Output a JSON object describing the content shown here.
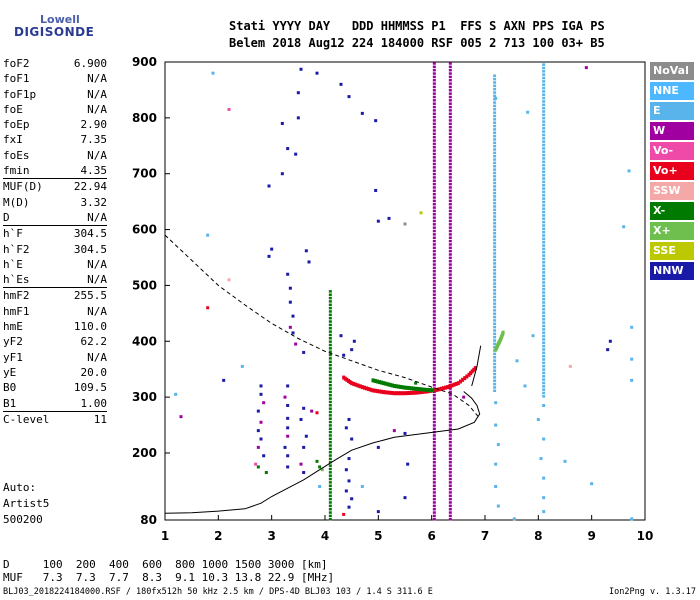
{
  "logo": {
    "line1": "Lowell",
    "line2": "DIGISONDE"
  },
  "header": {
    "line1": "Stati YYYY DAY   DDD HHMMSS P1  FFS S AXN PPS IGA PS",
    "line2": "Belem 2018 Aug12 224 184000 RSF 005 2 713 100 03+ B5"
  },
  "params_group1": [
    {
      "label": "foF2",
      "value": "6.900"
    },
    {
      "label": "foF1",
      "value": "N/A"
    },
    {
      "label": "foF1p",
      "value": "N/A"
    },
    {
      "label": "foE",
      "value": "N/A"
    },
    {
      "label": "foEp",
      "value": "2.90"
    },
    {
      "label": "fxI",
      "value": "7.35"
    },
    {
      "label": "foEs",
      "value": "N/A"
    },
    {
      "label": "fmin",
      "value": "4.35"
    }
  ],
  "params_group2": [
    {
      "label": "MUF(D)",
      "value": "22.94"
    },
    {
      "label": "M(D)",
      "value": "3.32"
    },
    {
      "label": "D",
      "value": "N/A"
    }
  ],
  "params_group3": [
    {
      "label": "h`F",
      "value": "304.5"
    },
    {
      "label": "h`F2",
      "value": "304.5"
    },
    {
      "label": "h`E",
      "value": "N/A"
    },
    {
      "label": "h`Es",
      "value": "N/A"
    }
  ],
  "params_group4": [
    {
      "label": "hmF2",
      "value": "255.5"
    },
    {
      "label": "hmF1",
      "value": "N/A"
    },
    {
      "label": "hmE",
      "value": "110.0"
    },
    {
      "label": "yF2",
      "value": "62.2"
    },
    {
      "label": "yF1",
      "value": "N/A"
    },
    {
      "label": "yE",
      "value": "20.0"
    },
    {
      "label": "B0",
      "value": "109.5"
    },
    {
      "label": "B1",
      "value": "1.00"
    }
  ],
  "params_group5": [
    {
      "label": "C-level",
      "value": "11"
    }
  ],
  "auto": {
    "line1": "Auto:",
    "line2": "Artist5",
    "line3": "500200"
  },
  "muf_table": {
    "d_row": "D     100  200  400  600  800 1000 1500 3000 [km]",
    "muf_row": "MUF   7.3  7.3  7.7  8.3  9.1 10.3 13.8 22.9 [MHz]"
  },
  "footer": {
    "left": "BLJ03_2018224184000.RSF / 180fx512h 50 kHz 2.5 km / DPS-4D BLJ03 103 / 1.4 S 311.6 E",
    "right": "Ion2Png v. 1.3.17"
  },
  "legend": [
    {
      "label": "NoVal",
      "color": "#8c8c8c"
    },
    {
      "label": "NNE",
      "color": "#4db8ff"
    },
    {
      "label": "E",
      "color": "#59b4ec"
    },
    {
      "label": "W",
      "color": "#a0009f"
    },
    {
      "label": "Vo-",
      "color": "#f04aa8"
    },
    {
      "label": "Vo+",
      "color": "#e8001c"
    },
    {
      "label": "SSW",
      "color": "#f4a9a8"
    },
    {
      "label": "X-",
      "color": "#007a00"
    },
    {
      "label": "X+",
      "color": "#6fbf4f"
    },
    {
      "label": "SSE",
      "color": "#bcc800"
    },
    {
      "label": "NNW",
      "color": "#1a1aa8"
    }
  ],
  "chart_data": {
    "type": "scatter",
    "xlim": [
      1,
      10
    ],
    "ylim": [
      80,
      900
    ],
    "xticks": [
      1,
      2,
      3,
      4,
      5,
      6,
      7,
      8,
      9,
      10
    ],
    "yticks": [
      80,
      200,
      300,
      400,
      500,
      600,
      700,
      800,
      900
    ],
    "x_unit": "MHz",
    "y_unit": "km",
    "grid": false,
    "legend_position": "right",
    "traces": [
      {
        "name": "Vo+",
        "color": "#e8001c",
        "x": [
          4.35,
          4.5,
          4.7,
          4.9,
          5.1,
          5.3,
          5.5,
          5.7,
          5.9,
          6.1,
          6.3,
          6.5,
          6.7,
          6.85
        ],
        "y": [
          335,
          325,
          318,
          312,
          309,
          307,
          307,
          308,
          310,
          313,
          318,
          325,
          340,
          355
        ]
      },
      {
        "name": "X-",
        "color": "#007a00",
        "x": [
          4.9,
          5.1,
          5.3,
          5.5,
          5.7,
          5.9,
          6.05
        ],
        "y": [
          330,
          325,
          320,
          317,
          315,
          313,
          312
        ]
      },
      {
        "name": "X+",
        "color": "#6fbf4f",
        "x": [
          7.2,
          7.25,
          7.3,
          7.35
        ],
        "y": [
          385,
          395,
          405,
          418
        ]
      }
    ],
    "profile_solid": {
      "color": "#000000",
      "x": [
        1.0,
        1.5,
        2.0,
        2.5,
        2.8,
        3.0,
        3.3,
        3.6,
        3.9,
        4.2,
        4.5,
        4.9,
        5.3,
        5.7,
        6.1,
        6.5,
        6.8,
        6.9,
        6.85,
        6.75,
        6.6
      ],
      "y": [
        92,
        93,
        96,
        100,
        110,
        122,
        137,
        152,
        170,
        188,
        205,
        218,
        228,
        233,
        238,
        243,
        255,
        270,
        285,
        298,
        310
      ]
    },
    "profile_tail": {
      "color": "#000000",
      "x": [
        6.75,
        6.85,
        6.92
      ],
      "y": [
        320,
        355,
        392
      ]
    },
    "profile_dashed": {
      "color": "#000000",
      "x": [
        1.0,
        1.5,
        2.0,
        2.5,
        3.0,
        3.5,
        4.0,
        4.5,
        5.0,
        5.5,
        6.0,
        6.4,
        6.7,
        6.9
      ],
      "y": [
        590,
        545,
        500,
        465,
        432,
        405,
        382,
        365,
        348,
        335,
        318,
        305,
        285,
        262
      ]
    },
    "vertical_traces": [
      {
        "x": 6.05,
        "y_from": 80,
        "y_to": 900,
        "color": "#a0009f"
      },
      {
        "x": 6.35,
        "y_from": 80,
        "y_to": 900,
        "color": "#a0009f"
      },
      {
        "x": 4.1,
        "y_from": 80,
        "y_to": 490,
        "color": "#007a00"
      },
      {
        "x": 7.18,
        "y_from": 310,
        "y_to": 880,
        "color": "#59b4ec"
      },
      {
        "x": 8.1,
        "y_from": 300,
        "y_to": 900,
        "color": "#59b4ec"
      }
    ],
    "scatter_points": [
      {
        "x": 3.55,
        "y": 887,
        "c": "#1a1aa8"
      },
      {
        "x": 3.85,
        "y": 880,
        "c": "#1a1aa8"
      },
      {
        "x": 1.9,
        "y": 880,
        "c": "#59b4ec"
      },
      {
        "x": 8.9,
        "y": 890,
        "c": "#a0009f"
      },
      {
        "x": 3.5,
        "y": 845,
        "c": "#1a1aa8"
      },
      {
        "x": 4.3,
        "y": 860,
        "c": "#1a1aa8"
      },
      {
        "x": 4.45,
        "y": 838,
        "c": "#1a1aa8"
      },
      {
        "x": 2.2,
        "y": 815,
        "c": "#f04aa8"
      },
      {
        "x": 3.5,
        "y": 800,
        "c": "#1a1aa8"
      },
      {
        "x": 3.2,
        "y": 790,
        "c": "#1a1aa8"
      },
      {
        "x": 4.7,
        "y": 808,
        "c": "#1a1aa8"
      },
      {
        "x": 4.95,
        "y": 795,
        "c": "#1a1aa8"
      },
      {
        "x": 7.2,
        "y": 835,
        "c": "#59b4ec"
      },
      {
        "x": 7.8,
        "y": 810,
        "c": "#59b4ec"
      },
      {
        "x": 3.3,
        "y": 745,
        "c": "#1a1aa8"
      },
      {
        "x": 3.45,
        "y": 735,
        "c": "#1a1aa8"
      },
      {
        "x": 3.2,
        "y": 700,
        "c": "#1a1aa8"
      },
      {
        "x": 2.95,
        "y": 678,
        "c": "#1a1aa8"
      },
      {
        "x": 4.95,
        "y": 670,
        "c": "#1a1aa8"
      },
      {
        "x": 5.2,
        "y": 620,
        "c": "#1a1aa8"
      },
      {
        "x": 5.0,
        "y": 615,
        "c": "#1a1aa8"
      },
      {
        "x": 5.8,
        "y": 630,
        "c": "#bcc800"
      },
      {
        "x": 1.8,
        "y": 590,
        "c": "#59b4ec"
      },
      {
        "x": 5.5,
        "y": 610,
        "c": "#8c8c8c"
      },
      {
        "x": 2.95,
        "y": 552,
        "c": "#1a1aa8"
      },
      {
        "x": 3.0,
        "y": 565,
        "c": "#1a1aa8"
      },
      {
        "x": 3.65,
        "y": 562,
        "c": "#1a1aa8"
      },
      {
        "x": 3.7,
        "y": 542,
        "c": "#1a1aa8"
      },
      {
        "x": 3.3,
        "y": 520,
        "c": "#1a1aa8"
      },
      {
        "x": 3.35,
        "y": 495,
        "c": "#1a1aa8"
      },
      {
        "x": 3.35,
        "y": 470,
        "c": "#1a1aa8"
      },
      {
        "x": 3.4,
        "y": 445,
        "c": "#1a1aa8"
      },
      {
        "x": 3.35,
        "y": 425,
        "c": "#a0009f"
      },
      {
        "x": 3.4,
        "y": 415,
        "c": "#1a1aa8"
      },
      {
        "x": 3.45,
        "y": 395,
        "c": "#a0009f"
      },
      {
        "x": 3.6,
        "y": 380,
        "c": "#1a1aa8"
      },
      {
        "x": 4.3,
        "y": 410,
        "c": "#1a1aa8"
      },
      {
        "x": 4.55,
        "y": 400,
        "c": "#1a1aa8"
      },
      {
        "x": 4.5,
        "y": 385,
        "c": "#1a1aa8"
      },
      {
        "x": 4.35,
        "y": 375,
        "c": "#1a1aa8"
      },
      {
        "x": 2.2,
        "y": 510,
        "c": "#f4a9a8"
      },
      {
        "x": 1.8,
        "y": 460,
        "c": "#e8001c"
      },
      {
        "x": 9.7,
        "y": 705,
        "c": "#59b4ec"
      },
      {
        "x": 9.6,
        "y": 605,
        "c": "#59b4ec"
      },
      {
        "x": 9.75,
        "y": 425,
        "c": "#59b4ec"
      },
      {
        "x": 9.35,
        "y": 400,
        "c": "#1a1aa8"
      },
      {
        "x": 9.3,
        "y": 385,
        "c": "#1a1aa8"
      },
      {
        "x": 9.75,
        "y": 368,
        "c": "#59b4ec"
      },
      {
        "x": 9.75,
        "y": 330,
        "c": "#59b4ec"
      },
      {
        "x": 8.6,
        "y": 355,
        "c": "#f4a9a8"
      },
      {
        "x": 7.9,
        "y": 410,
        "c": "#59b4ec"
      },
      {
        "x": 7.6,
        "y": 365,
        "c": "#59b4ec"
      },
      {
        "x": 7.75,
        "y": 320,
        "c": "#59b4ec"
      },
      {
        "x": 8.1,
        "y": 285,
        "c": "#59b4ec"
      },
      {
        "x": 8.0,
        "y": 260,
        "c": "#59b4ec"
      },
      {
        "x": 8.1,
        "y": 225,
        "c": "#59b4ec"
      },
      {
        "x": 8.05,
        "y": 190,
        "c": "#59b4ec"
      },
      {
        "x": 8.1,
        "y": 155,
        "c": "#59b4ec"
      },
      {
        "x": 8.1,
        "y": 120,
        "c": "#59b4ec"
      },
      {
        "x": 8.1,
        "y": 95,
        "c": "#59b4ec"
      },
      {
        "x": 7.2,
        "y": 290,
        "c": "#59b4ec"
      },
      {
        "x": 7.2,
        "y": 250,
        "c": "#59b4ec"
      },
      {
        "x": 7.25,
        "y": 215,
        "c": "#59b4ec"
      },
      {
        "x": 7.2,
        "y": 180,
        "c": "#59b4ec"
      },
      {
        "x": 7.2,
        "y": 140,
        "c": "#59b4ec"
      },
      {
        "x": 7.25,
        "y": 105,
        "c": "#59b4ec"
      },
      {
        "x": 8.5,
        "y": 185,
        "c": "#59b4ec"
      },
      {
        "x": 9.0,
        "y": 145,
        "c": "#59b4ec"
      },
      {
        "x": 9.75,
        "y": 82,
        "c": "#59b4ec"
      },
      {
        "x": 7.55,
        "y": 82,
        "c": "#59b4ec"
      },
      {
        "x": 1.2,
        "y": 305,
        "c": "#59b4ec"
      },
      {
        "x": 1.3,
        "y": 265,
        "c": "#a0009f"
      },
      {
        "x": 2.8,
        "y": 320,
        "c": "#1a1aa8"
      },
      {
        "x": 2.8,
        "y": 305,
        "c": "#1a1aa8"
      },
      {
        "x": 2.85,
        "y": 290,
        "c": "#a0009f"
      },
      {
        "x": 2.75,
        "y": 275,
        "c": "#1a1aa8"
      },
      {
        "x": 2.8,
        "y": 255,
        "c": "#a0009f"
      },
      {
        "x": 2.75,
        "y": 240,
        "c": "#1a1aa8"
      },
      {
        "x": 2.8,
        "y": 225,
        "c": "#1a1aa8"
      },
      {
        "x": 2.75,
        "y": 210,
        "c": "#a0009f"
      },
      {
        "x": 2.85,
        "y": 195,
        "c": "#1a1aa8"
      },
      {
        "x": 2.7,
        "y": 180,
        "c": "#f04aa8"
      },
      {
        "x": 2.75,
        "y": 175,
        "c": "#007a00"
      },
      {
        "x": 2.9,
        "y": 165,
        "c": "#007a00"
      },
      {
        "x": 3.3,
        "y": 320,
        "c": "#1a1aa8"
      },
      {
        "x": 3.25,
        "y": 300,
        "c": "#a0009f"
      },
      {
        "x": 3.3,
        "y": 285,
        "c": "#1a1aa8"
      },
      {
        "x": 3.3,
        "y": 262,
        "c": "#1a1aa8"
      },
      {
        "x": 3.3,
        "y": 245,
        "c": "#1a1aa8"
      },
      {
        "x": 3.3,
        "y": 230,
        "c": "#a0009f"
      },
      {
        "x": 3.25,
        "y": 210,
        "c": "#1a1aa8"
      },
      {
        "x": 3.3,
        "y": 195,
        "c": "#1a1aa8"
      },
      {
        "x": 3.3,
        "y": 175,
        "c": "#1a1aa8"
      },
      {
        "x": 3.6,
        "y": 280,
        "c": "#1a1aa8"
      },
      {
        "x": 3.55,
        "y": 260,
        "c": "#1a1aa8"
      },
      {
        "x": 3.65,
        "y": 230,
        "c": "#1a1aa8"
      },
      {
        "x": 3.6,
        "y": 210,
        "c": "#1a1aa8"
      },
      {
        "x": 3.55,
        "y": 180,
        "c": "#a0009f"
      },
      {
        "x": 3.6,
        "y": 165,
        "c": "#1a1aa8"
      },
      {
        "x": 3.85,
        "y": 185,
        "c": "#007a00"
      },
      {
        "x": 3.9,
        "y": 175,
        "c": "#007a00"
      },
      {
        "x": 3.95,
        "y": 170,
        "c": "#6fbf4f"
      },
      {
        "x": 3.9,
        "y": 140,
        "c": "#59b4ec"
      },
      {
        "x": 3.75,
        "y": 275,
        "c": "#a0009f"
      },
      {
        "x": 3.85,
        "y": 272,
        "c": "#e8001c"
      },
      {
        "x": 4.45,
        "y": 260,
        "c": "#1a1aa8"
      },
      {
        "x": 4.4,
        "y": 245,
        "c": "#1a1aa8"
      },
      {
        "x": 4.5,
        "y": 225,
        "c": "#1a1aa8"
      },
      {
        "x": 4.45,
        "y": 190,
        "c": "#1a1aa8"
      },
      {
        "x": 4.4,
        "y": 170,
        "c": "#1a1aa8"
      },
      {
        "x": 4.45,
        "y": 150,
        "c": "#1a1aa8"
      },
      {
        "x": 4.4,
        "y": 132,
        "c": "#1a1aa8"
      },
      {
        "x": 4.5,
        "y": 118,
        "c": "#1a1aa8"
      },
      {
        "x": 4.45,
        "y": 103,
        "c": "#1a1aa8"
      },
      {
        "x": 4.7,
        "y": 140,
        "c": "#59b4ec"
      },
      {
        "x": 4.35,
        "y": 90,
        "c": "#e8001c"
      },
      {
        "x": 5.0,
        "y": 210,
        "c": "#1a1aa8"
      },
      {
        "x": 5.5,
        "y": 235,
        "c": "#1a1aa8"
      },
      {
        "x": 5.55,
        "y": 180,
        "c": "#1a1aa8"
      },
      {
        "x": 5.3,
        "y": 240,
        "c": "#a0009f"
      },
      {
        "x": 5.5,
        "y": 120,
        "c": "#1a1aa8"
      },
      {
        "x": 5.0,
        "y": 95,
        "c": "#1a1aa8"
      },
      {
        "x": 2.45,
        "y": 355,
        "c": "#59b4ec"
      },
      {
        "x": 2.1,
        "y": 330,
        "c": "#1a1aa8"
      },
      {
        "x": 6.6,
        "y": 300,
        "c": "#a0009f"
      },
      {
        "x": 5.7,
        "y": 325,
        "c": "#007a00"
      }
    ]
  }
}
